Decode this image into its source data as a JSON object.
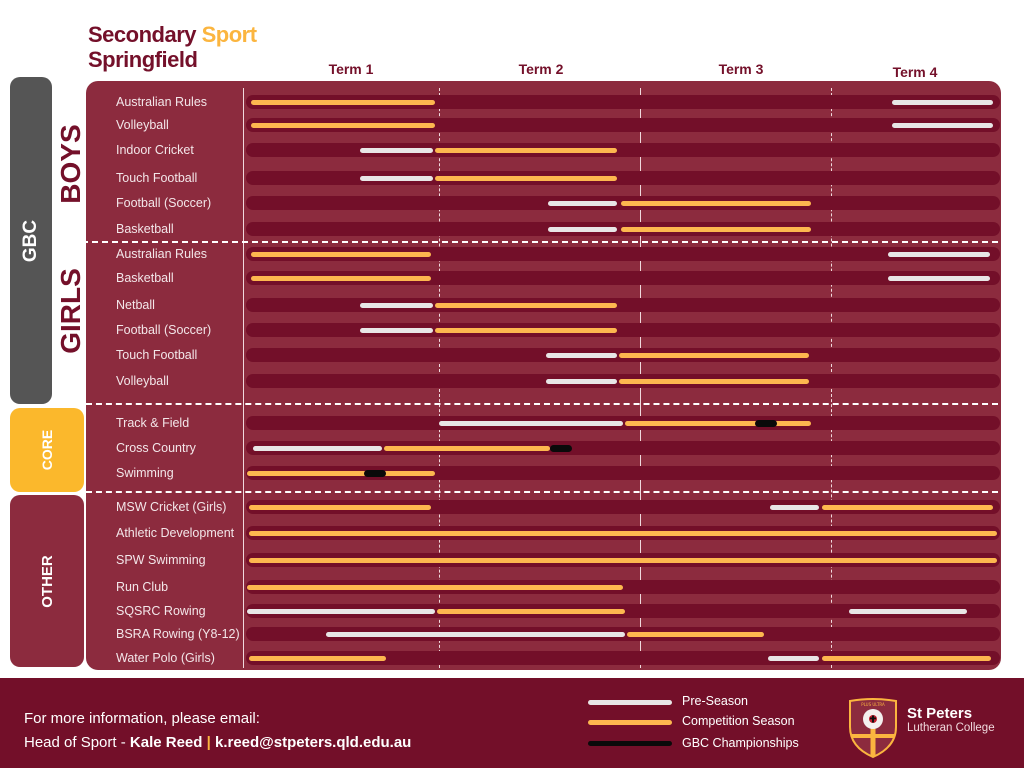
{
  "header": {
    "title_part1": "Secondary",
    "title_accent": "Sport",
    "title_line2": "Springfield"
  },
  "colors": {
    "maroon": "#730f29",
    "panel": "#8c2b3e",
    "gold": "#fdb74f",
    "pre_season": "#e8e6e6",
    "championship": "#0a0a0a",
    "gbc_tab": "#555555",
    "core_tab": "#fbb82c"
  },
  "groups": {
    "gbc": "GBC",
    "boys": "BOYS",
    "girls": "GIRLS",
    "core": "CORE",
    "other": "OTHER"
  },
  "chart_data": {
    "type": "gantt",
    "title": "Secondary Sport Springfield",
    "x_axis": {
      "range": [
        0,
        4
      ],
      "unit": "school term",
      "tick_labels": [
        "Term 1",
        "Term 2",
        "Term 3",
        "Term 4"
      ]
    },
    "legend": {
      "placement": "bottom",
      "items": [
        {
          "key": "pre",
          "label": "Pre-Season"
        },
        {
          "key": "comp",
          "label": "Competition Season"
        },
        {
          "key": "champ",
          "label": "GBC Championships"
        }
      ]
    },
    "rows": [
      {
        "group": "GBC Boys",
        "sport": "Australian Rules",
        "segments": [
          {
            "type": "comp",
            "start": 0.02,
            "end": 1.0
          },
          {
            "type": "pre",
            "start": 3.43,
            "end": 3.97
          }
        ]
      },
      {
        "group": "GBC Boys",
        "sport": "Volleyball",
        "segments": [
          {
            "type": "comp",
            "start": 0.02,
            "end": 1.0
          },
          {
            "type": "pre",
            "start": 3.43,
            "end": 3.97
          }
        ]
      },
      {
        "group": "GBC Boys",
        "sport": "Indoor Cricket",
        "segments": [
          {
            "type": "pre",
            "start": 0.6,
            "end": 0.99
          },
          {
            "type": "comp",
            "start": 1.0,
            "end": 1.97
          }
        ]
      },
      {
        "group": "GBC Boys",
        "sport": "Touch Football",
        "segments": [
          {
            "type": "pre",
            "start": 0.6,
            "end": 0.99
          },
          {
            "type": "comp",
            "start": 1.0,
            "end": 1.97
          }
        ]
      },
      {
        "group": "GBC Boys",
        "sport": "Football (Soccer)",
        "segments": [
          {
            "type": "pre",
            "start": 1.6,
            "end": 1.97
          },
          {
            "type": "comp",
            "start": 1.99,
            "end": 3.0
          }
        ]
      },
      {
        "group": "GBC Boys",
        "sport": "Basketball",
        "segments": [
          {
            "type": "pre",
            "start": 1.6,
            "end": 1.97
          },
          {
            "type": "comp",
            "start": 1.99,
            "end": 3.0
          }
        ]
      },
      {
        "group": "GBC Girls",
        "sport": "Australian Rules",
        "segments": [
          {
            "type": "comp",
            "start": 0.02,
            "end": 0.98
          },
          {
            "type": "pre",
            "start": 3.41,
            "end": 3.95
          }
        ]
      },
      {
        "group": "GBC Girls",
        "sport": "Basketball",
        "segments": [
          {
            "type": "comp",
            "start": 0.02,
            "end": 0.98
          },
          {
            "type": "pre",
            "start": 3.41,
            "end": 3.95
          }
        ]
      },
      {
        "group": "GBC Girls",
        "sport": "Netball",
        "segments": [
          {
            "type": "pre",
            "start": 0.6,
            "end": 0.99
          },
          {
            "type": "comp",
            "start": 1.0,
            "end": 1.97
          }
        ]
      },
      {
        "group": "GBC Girls",
        "sport": "Football (Soccer)",
        "segments": [
          {
            "type": "pre",
            "start": 0.6,
            "end": 0.99
          },
          {
            "type": "comp",
            "start": 1.0,
            "end": 1.97
          }
        ]
      },
      {
        "group": "GBC Girls",
        "sport": "Touch Football",
        "segments": [
          {
            "type": "pre",
            "start": 1.59,
            "end": 1.97
          },
          {
            "type": "comp",
            "start": 1.98,
            "end": 2.99
          }
        ]
      },
      {
        "group": "GBC Girls",
        "sport": "Volleyball",
        "segments": [
          {
            "type": "pre",
            "start": 1.59,
            "end": 1.97
          },
          {
            "type": "comp",
            "start": 1.98,
            "end": 2.99
          }
        ]
      },
      {
        "group": "Core",
        "sport": "Track & Field",
        "segments": [
          {
            "type": "pre",
            "start": 1.02,
            "end": 2.0
          },
          {
            "type": "comp",
            "start": 2.01,
            "end": 3.0
          },
          {
            "type": "champ",
            "start": 2.7,
            "end": 2.82
          }
        ]
      },
      {
        "group": "Core",
        "sport": "Cross Country",
        "segments": [
          {
            "type": "pre",
            "start": 0.03,
            "end": 0.72
          },
          {
            "type": "comp",
            "start": 0.73,
            "end": 1.61
          },
          {
            "type": "champ",
            "start": 1.61,
            "end": 1.73
          }
        ]
      },
      {
        "group": "Core",
        "sport": "Swimming",
        "segments": [
          {
            "type": "comp",
            "start": 0.0,
            "end": 1.0
          },
          {
            "type": "champ",
            "start": 0.62,
            "end": 0.74
          }
        ]
      },
      {
        "group": "Other",
        "sport": "MSW Cricket (Girls)",
        "segments": [
          {
            "type": "comp",
            "start": 0.01,
            "end": 0.98
          },
          {
            "type": "pre",
            "start": 2.78,
            "end": 3.04
          },
          {
            "type": "comp",
            "start": 3.06,
            "end": 3.97
          }
        ]
      },
      {
        "group": "Other",
        "sport": "Athletic Development",
        "segments": [
          {
            "type": "comp",
            "start": 0.01,
            "end": 3.99
          }
        ]
      },
      {
        "group": "Other",
        "sport": "SPW Swimming",
        "segments": [
          {
            "type": "comp",
            "start": 0.01,
            "end": 3.99
          }
        ]
      },
      {
        "group": "Other",
        "sport": "Run Club",
        "segments": [
          {
            "type": "comp",
            "start": 0.0,
            "end": 2.0
          }
        ]
      },
      {
        "group": "Other",
        "sport": "SQSRC Rowing",
        "segments": [
          {
            "type": "pre",
            "start": 0.0,
            "end": 1.0
          },
          {
            "type": "comp",
            "start": 1.01,
            "end": 2.01
          },
          {
            "type": "pre",
            "start": 3.2,
            "end": 3.83
          }
        ]
      },
      {
        "group": "Other",
        "sport": "BSRA Rowing (Y8-12)",
        "segments": [
          {
            "type": "pre",
            "start": 0.42,
            "end": 2.01
          },
          {
            "type": "comp",
            "start": 2.02,
            "end": 2.75
          }
        ]
      },
      {
        "group": "Other",
        "sport": "Water Polo (Girls)",
        "segments": [
          {
            "type": "comp",
            "start": 0.01,
            "end": 0.74
          },
          {
            "type": "pre",
            "start": 2.77,
            "end": 3.04
          },
          {
            "type": "comp",
            "start": 3.06,
            "end": 3.96
          }
        ]
      }
    ]
  },
  "footer": {
    "line1": "For more information, please email:",
    "line2_prefix": "Head of Sport -",
    "contact_name": "Kale Reed",
    "separator": "|",
    "email": "k.reed@stpeters.qld.edu.au"
  },
  "logo": {
    "crest_motto": "PLUS ULTRA",
    "name": "St Peters",
    "subtitle": "Lutheran College"
  }
}
